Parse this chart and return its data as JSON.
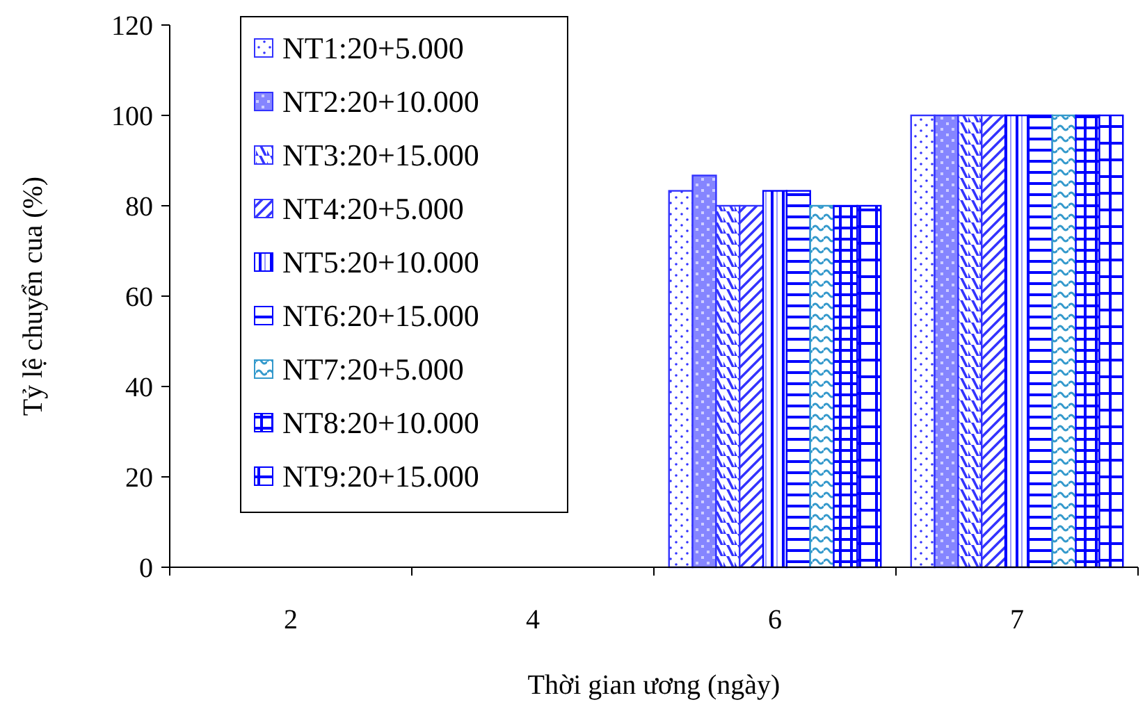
{
  "chart_data": {
    "type": "bar",
    "xlabel": "Thời gian ương (ngày)",
    "ylabel": "Tỷ lệ chuyển cua (%)",
    "categories": [
      "2",
      "4",
      "6",
      "7"
    ],
    "ylim": [
      0,
      120
    ],
    "yticks": [
      0,
      20,
      40,
      60,
      80,
      100,
      120
    ],
    "grid": false,
    "legend": "top left",
    "series": [
      {
        "name": "NT1:20+5.000",
        "color": "#3333ff",
        "values": [
          0,
          0,
          83.3,
          100
        ]
      },
      {
        "name": "NT2:20+10.000",
        "color": "#3333ff",
        "values": [
          0,
          0,
          86.7,
          100
        ]
      },
      {
        "name": "NT3:20+15.000",
        "color": "#3333ff",
        "values": [
          0,
          0,
          80,
          100
        ]
      },
      {
        "name": "NT4:20+5.000",
        "color": "#3333ff",
        "values": [
          0,
          0,
          80,
          100
        ]
      },
      {
        "name": "NT5:20+10.000",
        "color": "#0000ff",
        "values": [
          0,
          0,
          83.3,
          100
        ]
      },
      {
        "name": "NT6:20+15.000",
        "color": "#0000ff",
        "values": [
          0,
          0,
          83.3,
          100
        ]
      },
      {
        "name": "NT7:20+5.000",
        "color": "#3399cc",
        "values": [
          0,
          0,
          80,
          100
        ]
      },
      {
        "name": "NT8:20+10.000",
        "color": "#0000ff",
        "values": [
          0,
          0,
          80,
          100
        ]
      },
      {
        "name": "NT9:20+15.000",
        "color": "#0000ff",
        "values": [
          0,
          0,
          80,
          100
        ]
      }
    ]
  }
}
